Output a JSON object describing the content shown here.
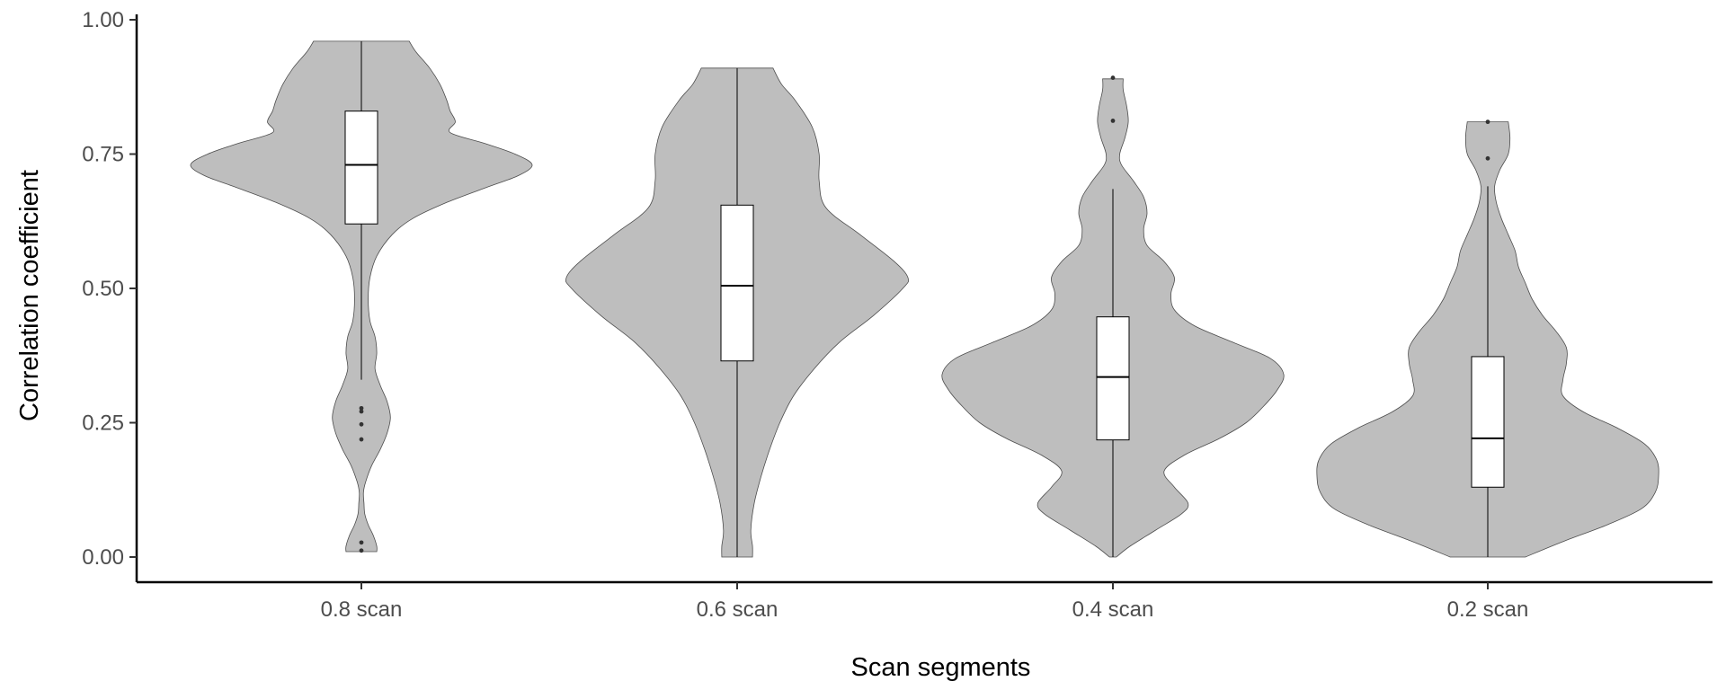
{
  "chart_data": {
    "type": "violin",
    "xlabel": "Scan segments",
    "ylabel": "Correlation coefficient",
    "ylim": [
      0,
      1
    ],
    "y_ticks": [
      0,
      0.25,
      0.5,
      0.75,
      1.0
    ],
    "y_tick_labels": [
      "0.00",
      "0.25",
      "0.50",
      "0.75",
      "1.00"
    ],
    "grid": false,
    "legend": "none",
    "colors": {
      "violin_fill": "#bebebe",
      "violin_stroke": "#4d4d4d",
      "box_fill": "#ffffff",
      "line": "#000000",
      "outlier": "#333333"
    },
    "categories": [
      "0.8 scan",
      "0.6 scan",
      "0.4 scan",
      "0.2 scan"
    ],
    "series": [
      {
        "category": "0.8 scan",
        "min": 0.01,
        "max": 0.96,
        "q1": 0.62,
        "median": 0.73,
        "q3": 0.83,
        "whisker_low": 0.33,
        "whisker_high": 0.96,
        "outliers": [
          0.277,
          0.271,
          0.247,
          0.219,
          0.027,
          0.012
        ],
        "density": [
          [
            0.01,
            0.09
          ],
          [
            0.02,
            0.09
          ],
          [
            0.04,
            0.07
          ],
          [
            0.06,
            0.04
          ],
          [
            0.08,
            0.02
          ],
          [
            0.1,
            0.015
          ],
          [
            0.12,
            0.012
          ],
          [
            0.14,
            0.025
          ],
          [
            0.17,
            0.06
          ],
          [
            0.2,
            0.11
          ],
          [
            0.23,
            0.15
          ],
          [
            0.26,
            0.17
          ],
          [
            0.29,
            0.15
          ],
          [
            0.32,
            0.11
          ],
          [
            0.35,
            0.08
          ],
          [
            0.38,
            0.09
          ],
          [
            0.41,
            0.08
          ],
          [
            0.44,
            0.05
          ],
          [
            0.48,
            0.04
          ],
          [
            0.52,
            0.05
          ],
          [
            0.56,
            0.09
          ],
          [
            0.6,
            0.18
          ],
          [
            0.63,
            0.3
          ],
          [
            0.66,
            0.5
          ],
          [
            0.69,
            0.75
          ],
          [
            0.71,
            0.92
          ],
          [
            0.73,
            1.0
          ],
          [
            0.75,
            0.9
          ],
          [
            0.77,
            0.72
          ],
          [
            0.79,
            0.52
          ],
          [
            0.81,
            0.55
          ],
          [
            0.83,
            0.52
          ],
          [
            0.85,
            0.5
          ],
          [
            0.88,
            0.46
          ],
          [
            0.91,
            0.4
          ],
          [
            0.94,
            0.32
          ],
          [
            0.96,
            0.28
          ]
        ]
      },
      {
        "category": "0.6 scan",
        "min": 0.0,
        "max": 0.91,
        "q1": 0.365,
        "median": 0.505,
        "q3": 0.655,
        "whisker_low": 0.0,
        "whisker_high": 0.91,
        "outliers": [],
        "density": [
          [
            0.0,
            0.09
          ],
          [
            0.02,
            0.09
          ],
          [
            0.05,
            0.08
          ],
          [
            0.1,
            0.1
          ],
          [
            0.15,
            0.14
          ],
          [
            0.2,
            0.19
          ],
          [
            0.25,
            0.25
          ],
          [
            0.3,
            0.33
          ],
          [
            0.35,
            0.45
          ],
          [
            0.4,
            0.6
          ],
          [
            0.45,
            0.8
          ],
          [
            0.5,
            0.97
          ],
          [
            0.52,
            1.0
          ],
          [
            0.55,
            0.92
          ],
          [
            0.6,
            0.72
          ],
          [
            0.65,
            0.52
          ],
          [
            0.7,
            0.48
          ],
          [
            0.75,
            0.48
          ],
          [
            0.8,
            0.44
          ],
          [
            0.85,
            0.34
          ],
          [
            0.88,
            0.26
          ],
          [
            0.91,
            0.21
          ]
        ]
      },
      {
        "category": "0.4 scan",
        "min": 0.0,
        "max": 0.89,
        "q1": 0.218,
        "median": 0.335,
        "q3": 0.447,
        "whisker_low": 0.0,
        "whisker_high": 0.685,
        "outliers": [
          0.892,
          0.812
        ],
        "density": [
          [
            0.0,
            0.02
          ],
          [
            0.02,
            0.1
          ],
          [
            0.05,
            0.25
          ],
          [
            0.08,
            0.4
          ],
          [
            0.1,
            0.44
          ],
          [
            0.13,
            0.36
          ],
          [
            0.16,
            0.3
          ],
          [
            0.19,
            0.42
          ],
          [
            0.22,
            0.62
          ],
          [
            0.25,
            0.78
          ],
          [
            0.28,
            0.88
          ],
          [
            0.31,
            0.96
          ],
          [
            0.34,
            1.0
          ],
          [
            0.37,
            0.92
          ],
          [
            0.4,
            0.7
          ],
          [
            0.43,
            0.48
          ],
          [
            0.46,
            0.36
          ],
          [
            0.49,
            0.34
          ],
          [
            0.52,
            0.36
          ],
          [
            0.55,
            0.3
          ],
          [
            0.58,
            0.2
          ],
          [
            0.61,
            0.18
          ],
          [
            0.64,
            0.2
          ],
          [
            0.67,
            0.18
          ],
          [
            0.7,
            0.12
          ],
          [
            0.73,
            0.05
          ],
          [
            0.75,
            0.04
          ],
          [
            0.78,
            0.07
          ],
          [
            0.81,
            0.09
          ],
          [
            0.84,
            0.08
          ],
          [
            0.87,
            0.06
          ],
          [
            0.89,
            0.06
          ]
        ]
      },
      {
        "category": "0.2 scan",
        "min": 0.0,
        "max": 0.81,
        "q1": 0.13,
        "median": 0.221,
        "q3": 0.373,
        "whisker_low": 0.0,
        "whisker_high": 0.69,
        "outliers": [
          0.81,
          0.742
        ],
        "density": [
          [
            0.0,
            0.22
          ],
          [
            0.03,
            0.45
          ],
          [
            0.06,
            0.7
          ],
          [
            0.09,
            0.9
          ],
          [
            0.12,
            0.98
          ],
          [
            0.15,
            1.0
          ],
          [
            0.18,
            0.99
          ],
          [
            0.21,
            0.92
          ],
          [
            0.24,
            0.76
          ],
          [
            0.27,
            0.56
          ],
          [
            0.3,
            0.44
          ],
          [
            0.33,
            0.44
          ],
          [
            0.36,
            0.46
          ],
          [
            0.39,
            0.46
          ],
          [
            0.42,
            0.4
          ],
          [
            0.45,
            0.32
          ],
          [
            0.48,
            0.26
          ],
          [
            0.51,
            0.22
          ],
          [
            0.54,
            0.18
          ],
          [
            0.57,
            0.16
          ],
          [
            0.6,
            0.12
          ],
          [
            0.63,
            0.08
          ],
          [
            0.66,
            0.05
          ],
          [
            0.69,
            0.04
          ],
          [
            0.72,
            0.07
          ],
          [
            0.75,
            0.12
          ],
          [
            0.78,
            0.13
          ],
          [
            0.81,
            0.12
          ]
        ]
      }
    ]
  }
}
